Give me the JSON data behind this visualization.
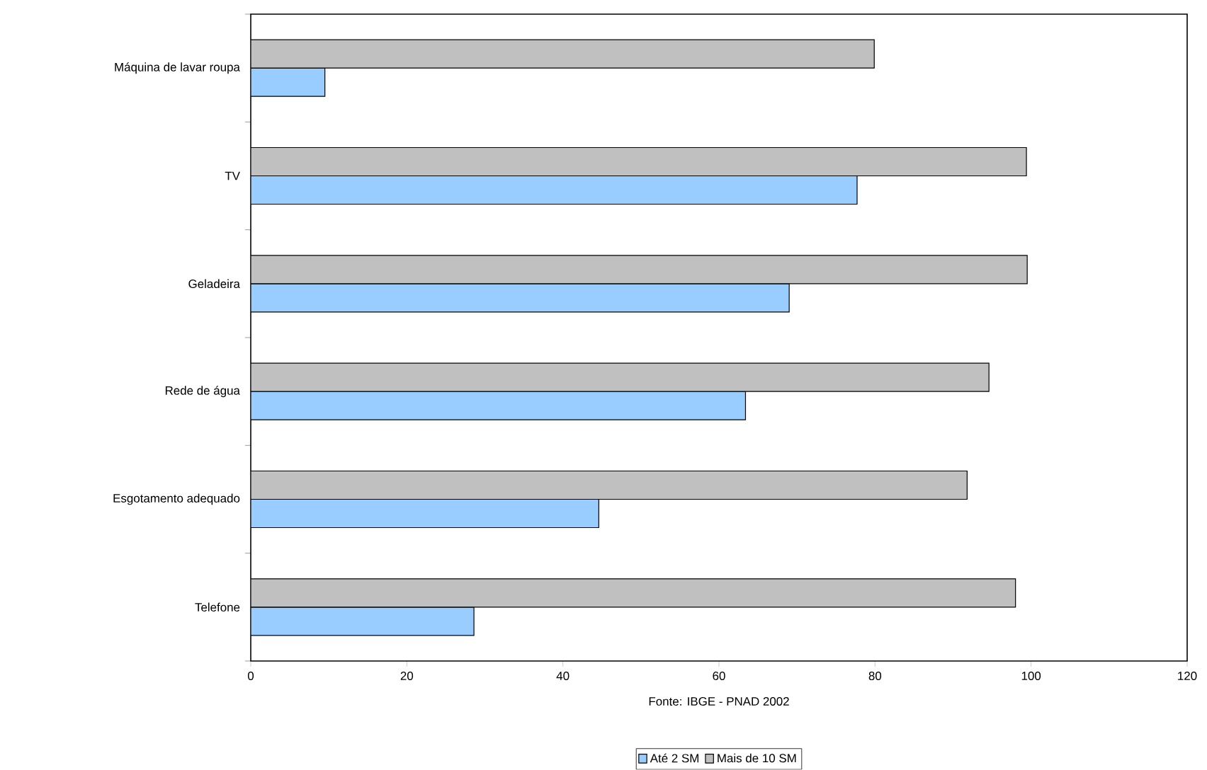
{
  "chart_data": {
    "type": "bar",
    "orientation": "horizontal",
    "categories": [
      "Máquina de lavar roupa",
      "TV",
      "Geladeira",
      "Rede de água",
      "Esgotamento adequado",
      "Telefone"
    ],
    "series": [
      {
        "name": "Até 2 SM",
        "color": "#99ccff",
        "values": [
          9.5,
          77.7,
          69.0,
          63.4,
          44.6,
          28.6
        ]
      },
      {
        "name": "Mais de 10 SM",
        "color": "#c0c0c0",
        "values": [
          79.9,
          99.4,
          99.5,
          94.6,
          91.8,
          98.0
        ]
      }
    ],
    "xlim": [
      0,
      120
    ],
    "xticks": [
      0,
      20,
      40,
      60,
      80,
      100,
      120
    ],
    "annotations": [
      "Fonte: IBGE - PNAD 2002"
    ],
    "grid": false,
    "legend": "bottom"
  }
}
